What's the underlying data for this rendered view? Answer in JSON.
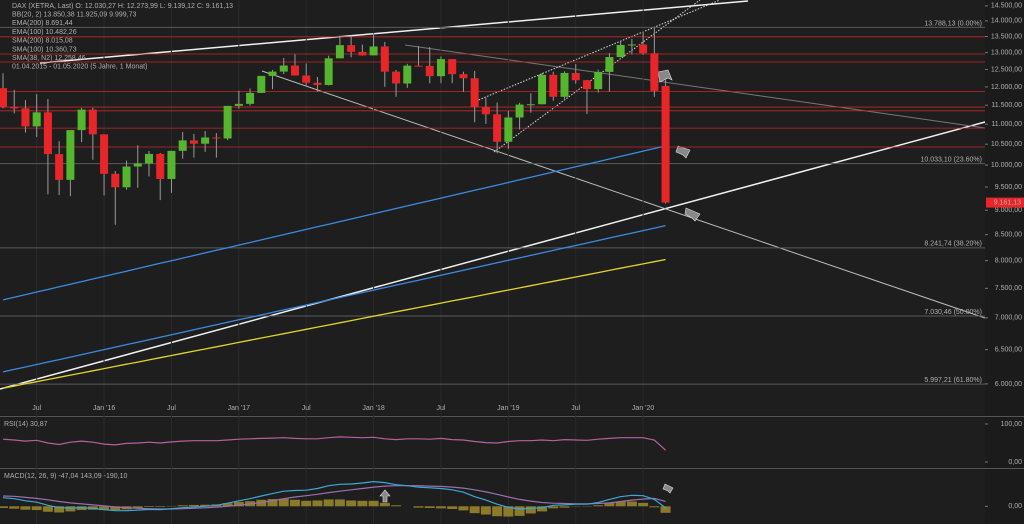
{
  "chart_data": {
    "type": "candlestick",
    "header": [
      "DAX (XETRA, Last)  O: 12.030,27  H: 12.273,99  L: 9.139,12  C: 9.161,13",
      "BB(20, 2)  13.850,38  11.925,09  9.999,73",
      "EMA(200)  8.691,44",
      "EMA(100)  10.482,26",
      "SMA(200)  8.015,08",
      "SMA(100)  10.360,73",
      "SMA(38, N2)  12.258,46",
      "01.04.2015 - 01.05.2020  (5 Jahre, 1 Monat)"
    ],
    "header_colors": [
      "#e8433a",
      "#9a9a9a",
      "#3b8be0",
      "#3b8be0",
      "#e0d52a",
      "#c9a21a",
      "#d39a1e",
      "#dddddd"
    ],
    "categories": [
      null,
      null,
      null,
      "Jul",
      null,
      null,
      null,
      null,
      null,
      "Jan '16",
      null,
      null,
      null,
      null,
      null,
      "Jul",
      null,
      null,
      null,
      null,
      null,
      "Jan '17",
      null,
      null,
      null,
      null,
      null,
      "Jul",
      null,
      null,
      null,
      null,
      null,
      "Jan '18",
      null,
      null,
      null,
      null,
      null,
      "Jul",
      null,
      null,
      null,
      null,
      null,
      "Jan '19",
      null,
      null,
      null,
      null,
      null,
      "Jul",
      null,
      null,
      null,
      null,
      null,
      "Jan '20",
      null,
      null
    ],
    "open": [
      11967,
      11454,
      11414,
      10945,
      11309,
      10259,
      9660,
      10850,
      11382,
      10743,
      9798,
      9495,
      9966,
      10039,
      10263,
      9680,
      10337,
      10593,
      10511,
      10665,
      10640,
      11481,
      11535,
      11834,
      12313,
      12438,
      12615,
      12325,
      12118,
      12056,
      12829,
      13230,
      13024,
      12918,
      13189,
      12436,
      12097,
      12612,
      12605,
      12306,
      12806,
      12364,
      12247,
      11448,
      11257,
      10559,
      11174,
      11516,
      11526,
      12344,
      11727,
      12399,
      12189,
      11939,
      12428,
      12868,
      13236,
      13249,
      12981,
      12030
    ],
    "high": [
      12391,
      11920,
      11635,
      11802,
      11669,
      10574,
      10850,
      11430,
      11430,
      10743,
      9862,
      10104,
      10474,
      10333,
      10286,
      10338,
      10802,
      10755,
      10827,
      10774,
      11482,
      11893,
      11959,
      12313,
      12486,
      12841,
      12952,
      12676,
      12283,
      12908,
      13527,
      13526,
      13247,
      13597,
      13331,
      12487,
      12665,
      13205,
      13170,
      12886,
      12807,
      12435,
      12459,
      11700,
      11570,
      11343,
      11563,
      11823,
      12396,
      12435,
      12444,
      12656,
      12200,
      12494,
      12988,
      13374,
      13425,
      13640,
      13795,
      12274
    ],
    "low": [
      11413,
      11283,
      10786,
      10676,
      9338,
      9325,
      9300,
      10550,
      10123,
      9314,
      8699,
      9441,
      9484,
      9737,
      9214,
      9371,
      10150,
      10175,
      10313,
      10175,
      10600,
      11406,
      11489,
      11828,
      11937,
      12367,
      12320,
      12004,
      11868,
      12042,
      12830,
      12859,
      12908,
      12918,
      12004,
      11727,
      11977,
      12605,
      12104,
      12105,
      12107,
      11866,
      11051,
      11009,
      10279,
      10386,
      10863,
      11299,
      11520,
      11620,
      11673,
      12090,
      11266,
      11843,
      11872,
      12861,
      12948,
      12938,
      11724,
      9139
    ],
    "close": [
      11454,
      11414,
      10945,
      11309,
      10259,
      9660,
      10850,
      11382,
      10743,
      9798,
      9495,
      9966,
      10039,
      10263,
      9680,
      10337,
      10593,
      10511,
      10665,
      10640,
      11481,
      11535,
      11834,
      12313,
      12438,
      12615,
      12325,
      12118,
      12056,
      12829,
      13230,
      13024,
      12918,
      13189,
      12436,
      12097,
      12612,
      12605,
      12306,
      12806,
      12364,
      12247,
      11448,
      11257,
      10559,
      11174,
      11516,
      11526,
      12344,
      11727,
      12399,
      12189,
      11939,
      12428,
      12868,
      13236,
      13249,
      12981,
      11890,
      9161
    ],
    "up_color": "#55b52e",
    "down_color": "#e8262a",
    "overlays": [
      {
        "color": "#3b8be0",
        "values": [
          6170,
          6206,
          6242,
          6278,
          6315,
          6351,
          6388,
          6425,
          6463,
          6500,
          6538,
          6576,
          6614,
          6652,
          6691,
          6730,
          6769,
          6808,
          6848,
          6888,
          6928,
          6968,
          7008,
          7049,
          7090,
          7131,
          7172,
          7214,
          7256,
          7298,
          7340,
          7383,
          7426,
          7469,
          7512,
          7556,
          7600,
          7644,
          7688,
          7733,
          7778,
          7823,
          7868,
          7914,
          7960,
          8006,
          8052,
          8099,
          8146,
          8193,
          8241,
          8289,
          8337,
          8385,
          8434,
          8483,
          8532,
          8582,
          8632,
          8682
        ]
      },
      {
        "color": "#3b8be0",
        "values": [
          7300,
          7345,
          7390,
          7435,
          7480,
          7526,
          7572,
          7618,
          7665,
          7712,
          7759,
          7806,
          7854,
          7902,
          7950,
          7999,
          8048,
          8097,
          8146,
          8196,
          8246,
          8296,
          8347,
          8398,
          8449,
          8501,
          8553,
          8605,
          8658,
          8711,
          8764,
          8817,
          8871,
          8925,
          8980,
          9035,
          9090,
          9146,
          9202,
          9258,
          9314,
          9371,
          9428,
          9486,
          9544,
          9602,
          9661,
          9720,
          9779,
          9839,
          9899,
          9959,
          10020,
          10081,
          10143,
          10205,
          10267,
          10330,
          10393,
          10456
        ]
      },
      {
        "color": "#e0d52a",
        "values": [
          5940,
          5970,
          6001,
          6031,
          6062,
          6093,
          6124,
          6155,
          6187,
          6218,
          6250,
          6282,
          6314,
          6346,
          6379,
          6411,
          6444,
          6477,
          6510,
          6543,
          6577,
          6610,
          6644,
          6678,
          6712,
          6746,
          6781,
          6815,
          6850,
          6885,
          6920,
          6956,
          6991,
          7027,
          7063,
          7099,
          7135,
          7172,
          7208,
          7245,
          7282,
          7319,
          7357,
          7394,
          7432,
          7470,
          7508,
          7546,
          7585,
          7623,
          7662,
          7701,
          7741,
          7780,
          7820,
          7860,
          7900,
          7940,
          7981,
          8022
        ]
      }
    ],
    "levels": [
      13490,
      12960,
      12720,
      11870,
      11450,
      11350,
      10900,
      10430
    ],
    "level_color": "#c8262a",
    "fibs": [
      {
        "value": 13788.13,
        "label": "13.788,13 (0.00%)"
      },
      {
        "value": 10033.1,
        "label": "10.033,10 (23.60%)"
      },
      {
        "value": 8241.74,
        "label": "8.241,74 (38.20%)"
      },
      {
        "value": 7030.46,
        "label": "7.030,46 (50.00%)"
      },
      {
        "value": 5997.21,
        "label": "5.997,21 (61.80%)"
      }
    ],
    "last_price": {
      "value": 9161.13,
      "label": "9.161,13"
    },
    "log_scale": true,
    "ylim": [
      5580,
      14700
    ],
    "yticks": [
      {
        "value": 14500,
        "label": "14.500,00"
      },
      {
        "value": 14000,
        "label": "14.000,00"
      },
      {
        "value": 13500,
        "label": "13.500,00"
      },
      {
        "value": 13000,
        "label": "13.000,00"
      },
      {
        "value": 12500,
        "label": "12.500,00"
      },
      {
        "value": 12000,
        "label": "12.000,00"
      },
      {
        "value": 11500,
        "label": "11.500,00"
      },
      {
        "value": 11000,
        "label": "11.000,00"
      },
      {
        "value": 10500,
        "label": "10.500,00"
      },
      {
        "value": 10000,
        "label": "10.000,00"
      },
      {
        "value": 9500,
        "label": "9.500,00"
      },
      {
        "value": 9000,
        "label": "9.000,00"
      },
      {
        "value": 8500,
        "label": "8.500,00"
      },
      {
        "value": 8000,
        "label": "8.000,00"
      },
      {
        "value": 7500,
        "label": "7.500,00"
      },
      {
        "value": 7000,
        "label": "7.000,00"
      },
      {
        "value": 6500,
        "label": "6.500,00"
      },
      {
        "value": 6000,
        "label": "6.000,00"
      }
    ],
    "rsi": {
      "title": "RSI(14)  30,87",
      "color": "#b7609e",
      "values": [
        60,
        58,
        55,
        57,
        50,
        46,
        52,
        55,
        52,
        47,
        45,
        49,
        50,
        52,
        50,
        53,
        55,
        56,
        56,
        56,
        58,
        60,
        61,
        62,
        63,
        64,
        62,
        61,
        61,
        64,
        66,
        65,
        64,
        65,
        61,
        59,
        61,
        61,
        60,
        62,
        59,
        58,
        54,
        51,
        50,
        54,
        56,
        56,
        58,
        56,
        59,
        58,
        57,
        60,
        62,
        64,
        64,
        64,
        58,
        31
      ],
      "ylim": [
        0,
        100
      ],
      "yticks": [
        {
          "value": 100,
          "label": "100,00"
        },
        {
          "value": 0,
          "label": "0,00"
        }
      ]
    },
    "macd": {
      "title": "MACD(12, 26, 9)  -47,04  143,09  -190,10",
      "line_color": "#3aa9d8",
      "signal_color": "#9a6fb0",
      "hist_color": "#8a7a2a",
      "line": [
        250,
        220,
        160,
        120,
        30,
        -40,
        -50,
        -40,
        -60,
        -100,
        -130,
        -130,
        -110,
        -90,
        -100,
        -70,
        -40,
        -20,
        0,
        30,
        90,
        160,
        220,
        300,
        370,
        440,
        460,
        470,
        520,
        600,
        640,
        650,
        680,
        720,
        690,
        630,
        600,
        560,
        540,
        520,
        480,
        410,
        280,
        180,
        60,
        -30,
        -80,
        -60,
        -40,
        30,
        40,
        60,
        60,
        110,
        200,
        280,
        320,
        310,
        200,
        -47
      ],
      "signal": [
        300,
        290,
        260,
        230,
        190,
        140,
        100,
        70,
        40,
        10,
        -20,
        -40,
        -60,
        -70,
        -80,
        -80,
        -70,
        -60,
        -45,
        -25,
        0,
        30,
        70,
        110,
        160,
        220,
        270,
        310,
        350,
        400,
        440,
        480,
        520,
        560,
        590,
        600,
        600,
        600,
        590,
        580,
        560,
        530,
        480,
        420,
        350,
        270,
        200,
        150,
        110,
        90,
        80,
        70,
        70,
        80,
        100,
        140,
        180,
        210,
        230,
        143
      ],
      "histogram": [
        -50,
        -70,
        -100,
        -110,
        -160,
        -180,
        -150,
        -110,
        -100,
        -110,
        -110,
        -90,
        -50,
        -20,
        -20,
        10,
        30,
        40,
        45,
        55,
        90,
        130,
        150,
        190,
        210,
        220,
        190,
        160,
        170,
        200,
        200,
        170,
        160,
        160,
        100,
        30,
        0,
        -40,
        -50,
        -60,
        -80,
        -120,
        -200,
        -240,
        -290,
        -300,
        -280,
        -210,
        -150,
        -60,
        -40,
        -10,
        -10,
        30,
        100,
        140,
        140,
        100,
        -30,
        -190
      ],
      "ylim": [
        -400,
        1000
      ],
      "yticks": [
        {
          "value": 0,
          "label": "0,00"
        }
      ]
    }
  }
}
